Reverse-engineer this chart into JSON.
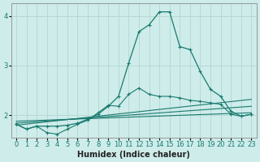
{
  "xlabel": "Humidex (Indice chaleur)",
  "background_color": "#cdecea",
  "grid_color": "#b8d8d5",
  "line_color": "#1a7a6e",
  "xlim": [
    -0.5,
    23.5
  ],
  "ylim": [
    1.55,
    4.25
  ],
  "yticks": [
    2,
    3,
    4
  ],
  "xticks": [
    0,
    1,
    2,
    3,
    4,
    5,
    6,
    7,
    8,
    9,
    10,
    11,
    12,
    13,
    14,
    15,
    16,
    17,
    18,
    19,
    20,
    21,
    22,
    23
  ],
  "series_main": {
    "x": [
      0,
      1,
      2,
      3,
      4,
      5,
      6,
      7,
      8,
      9,
      10,
      11,
      12,
      13,
      14,
      15,
      16,
      17,
      18,
      19,
      20,
      21,
      22,
      23
    ],
    "y": [
      1.82,
      1.72,
      1.78,
      1.78,
      1.78,
      1.8,
      1.84,
      1.92,
      2.02,
      2.18,
      2.38,
      3.05,
      3.68,
      3.82,
      4.08,
      4.08,
      3.38,
      3.32,
      2.88,
      2.52,
      2.38,
      2.08,
      1.98,
      2.02
    ]
  },
  "series_line1": {
    "x": [
      0,
      23
    ],
    "y": [
      1.88,
      2.05
    ]
  },
  "series_line2": {
    "x": [
      0,
      23
    ],
    "y": [
      1.84,
      2.18
    ]
  },
  "series_line3": {
    "x": [
      0,
      23
    ],
    "y": [
      1.8,
      2.32
    ]
  },
  "series_curve2": {
    "x": [
      0,
      1,
      2,
      3,
      4,
      5,
      6,
      7,
      8,
      9,
      10,
      11,
      12,
      13,
      14,
      15,
      16,
      17,
      18,
      19,
      20,
      21,
      22,
      23
    ],
    "y": [
      1.82,
      1.72,
      1.78,
      1.65,
      1.62,
      1.72,
      1.82,
      1.9,
      2.05,
      2.2,
      2.18,
      2.42,
      2.55,
      2.42,
      2.38,
      2.38,
      2.35,
      2.3,
      2.28,
      2.25,
      2.22,
      2.02,
      1.98,
      2.02
    ]
  }
}
